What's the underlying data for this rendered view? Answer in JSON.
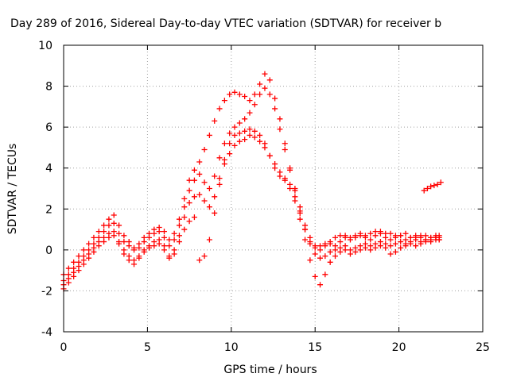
{
  "chart_data": {
    "type": "scatter",
    "title": "Day 289 of 2016, Sidereal Day-to-day VTEC variation (SDTVAR) for receiver b",
    "xlabel": "GPS time / hours",
    "ylabel": "SDTVAR / TECUs",
    "xlim": [
      0,
      25
    ],
    "ylim": [
      -4,
      10
    ],
    "xticks": [
      "0",
      "5",
      "10",
      "15",
      "20",
      "25"
    ],
    "yticks": [
      "-4",
      "-2",
      "0",
      "2",
      "4",
      "6",
      "8",
      "10"
    ],
    "grid": true,
    "marker": "+",
    "color": "#ff0000",
    "series": [
      {
        "x": [
          0.0,
          0.3,
          0.6,
          0.9,
          1.2,
          1.5,
          1.8,
          2.1,
          2.4,
          2.7,
          3.0,
          3.3,
          3.6,
          3.9,
          4.2,
          4.5,
          4.8,
          5.1,
          5.4,
          5.7,
          6.0,
          6.3,
          6.6,
          6.9,
          7.2,
          7.5,
          7.8,
          8.1,
          8.4,
          8.7,
          9.0,
          9.3,
          9.6,
          9.9,
          10.2,
          10.5,
          10.8,
          11.1,
          11.4,
          11.7,
          12.0,
          12.3,
          12.6,
          12.9,
          13.2,
          13.5,
          13.8,
          14.1,
          14.4,
          14.7,
          15.0,
          15.3,
          15.6,
          15.9,
          16.2,
          16.5,
          16.8,
          17.1,
          17.4,
          17.7,
          18.0,
          18.3,
          18.6,
          18.9,
          19.2,
          19.5,
          19.8,
          20.1,
          20.4,
          20.7,
          21.0,
          21.3,
          21.6,
          21.9,
          22.2,
          22.4
        ],
        "y": [
          -1.2,
          -0.9,
          -0.6,
          -0.3,
          0.0,
          0.3,
          0.6,
          0.9,
          1.2,
          1.5,
          1.7,
          1.2,
          0.7,
          0.4,
          0.1,
          0.3,
          0.6,
          0.8,
          1.0,
          1.1,
          0.9,
          0.5,
          0.8,
          1.5,
          2.5,
          3.4,
          3.9,
          4.3,
          4.9,
          5.6,
          6.3,
          6.9,
          7.3,
          7.6,
          7.7,
          7.6,
          7.5,
          7.3,
          7.6,
          8.1,
          8.6,
          8.3,
          7.4,
          6.4,
          5.2,
          4.0,
          2.9,
          1.9,
          1.0,
          0.3,
          0.1,
          0.2,
          0.3,
          0.4,
          0.6,
          0.7,
          0.7,
          0.6,
          0.7,
          0.8,
          0.7,
          0.8,
          0.9,
          0.9,
          0.8,
          0.8,
          0.7,
          0.7,
          0.8,
          0.6,
          0.6,
          0.7,
          0.7,
          0.6,
          0.7,
          0.7
        ]
      },
      {
        "x": [
          0.0,
          0.3,
          0.6,
          0.9,
          1.2,
          1.5,
          1.8,
          2.1,
          2.4,
          2.7,
          3.0,
          3.3,
          3.6,
          3.9,
          4.2,
          4.5,
          4.8,
          5.1,
          5.4,
          5.7,
          6.0,
          6.3,
          6.6,
          6.9,
          7.2,
          7.5,
          7.8,
          8.1,
          8.4,
          8.7,
          9.0,
          9.3,
          9.6,
          9.9,
          10.2,
          10.5,
          10.8,
          11.1,
          11.4,
          11.7,
          12.0,
          12.3,
          12.6,
          12.9,
          13.2,
          13.5,
          13.8,
          14.1,
          14.4,
          14.7,
          15.0,
          15.3,
          15.6,
          15.9,
          16.2,
          16.5,
          16.8,
          17.1,
          17.4,
          17.7,
          18.0,
          18.3,
          18.6,
          18.9,
          19.2,
          19.5,
          19.8,
          20.1,
          20.4,
          20.7,
          21.0,
          21.3,
          21.6,
          21.9,
          22.2,
          22.4
        ],
        "y": [
          -1.5,
          -1.2,
          -0.9,
          -0.6,
          -0.3,
          0.0,
          0.3,
          0.6,
          0.9,
          1.2,
          1.3,
          0.8,
          0.4,
          0.2,
          0.0,
          0.1,
          0.4,
          0.6,
          0.8,
          0.9,
          0.6,
          0.2,
          0.5,
          1.2,
          2.1,
          2.9,
          3.4,
          3.7,
          3.3,
          3.0,
          3.6,
          4.5,
          5.2,
          5.7,
          6.0,
          6.2,
          6.4,
          6.7,
          7.1,
          7.6,
          7.9,
          7.6,
          6.9,
          5.9,
          4.9,
          3.9,
          3.0,
          2.1,
          1.2,
          0.6,
          0.2,
          0.0,
          0.2,
          0.3,
          0.2,
          0.4,
          0.6,
          0.5,
          0.6,
          0.7,
          0.6,
          0.5,
          0.7,
          0.8,
          0.6,
          0.5,
          0.6,
          0.7,
          0.5,
          0.6,
          0.7,
          0.6,
          0.5,
          0.6,
          0.6,
          0.5
        ]
      },
      {
        "x": [
          0.0,
          0.3,
          0.6,
          0.9,
          1.2,
          1.5,
          1.8,
          2.1,
          2.4,
          2.7,
          3.0,
          3.3,
          3.6,
          3.9,
          4.2,
          4.5,
          4.8,
          5.1,
          5.4,
          5.7,
          6.0,
          6.3,
          6.6,
          6.9,
          7.2,
          7.5,
          7.8,
          8.1,
          8.4,
          8.7,
          9.0,
          9.3,
          9.6,
          9.9,
          10.2,
          10.5,
          10.8,
          11.1,
          11.4,
          11.7,
          12.0,
          12.3,
          12.6,
          12.9,
          13.2,
          13.5,
          13.8,
          14.1,
          14.4,
          14.7,
          15.0,
          15.3,
          15.6,
          15.9,
          16.2,
          16.5,
          16.8,
          17.1,
          17.4,
          17.7,
          18.0,
          18.3,
          18.6,
          18.9,
          19.2,
          19.5,
          19.8,
          20.1,
          20.4,
          20.7,
          21.0,
          21.3,
          21.6,
          21.9,
          22.2,
          22.4
        ],
        "y": [
          -1.7,
          -1.4,
          -1.1,
          -0.8,
          -0.5,
          -0.2,
          0.1,
          0.4,
          0.6,
          0.8,
          0.9,
          0.4,
          0.0,
          -0.3,
          -0.5,
          -0.3,
          0.0,
          0.2,
          0.4,
          0.5,
          0.2,
          -0.3,
          0.0,
          0.7,
          1.6,
          2.3,
          2.6,
          2.7,
          2.4,
          2.1,
          2.6,
          3.5,
          4.2,
          4.7,
          5.1,
          5.3,
          5.4,
          5.6,
          5.5,
          5.3,
          5.0,
          4.6,
          4.2,
          3.8,
          3.5,
          3.2,
          2.6,
          1.8,
          1.0,
          0.4,
          -0.2,
          -0.4,
          -0.3,
          -0.1,
          0.0,
          0.1,
          0.2,
          0.0,
          0.1,
          0.2,
          0.3,
          0.2,
          0.3,
          0.4,
          0.3,
          0.2,
          0.3,
          0.4,
          0.3,
          0.4,
          0.5,
          0.4,
          0.5,
          0.5,
          0.6,
          0.5
        ]
      },
      {
        "x": [
          0.0,
          0.3,
          0.6,
          0.9,
          1.2,
          1.5,
          1.8,
          2.1,
          2.4,
          2.7,
          3.0,
          3.3,
          3.6,
          3.9,
          4.2,
          4.5,
          4.8,
          5.1,
          5.4,
          5.7,
          6.0,
          6.3,
          6.6,
          6.9,
          7.2,
          7.5,
          7.8,
          8.1,
          8.4,
          8.7,
          9.0,
          9.3,
          9.6,
          9.9,
          10.2,
          10.5,
          10.8,
          11.1,
          11.4,
          11.7,
          12.0,
          12.3,
          12.6,
          12.9,
          13.2,
          13.5,
          13.8,
          14.1,
          14.4,
          14.7,
          15.0,
          15.3,
          15.6,
          15.9,
          16.2,
          16.5,
          16.8,
          17.1,
          17.4,
          17.7,
          18.0,
          18.3,
          18.6,
          18.9,
          19.2,
          19.5,
          19.8,
          20.1,
          20.4,
          20.7,
          21.0,
          21.3,
          21.6,
          21.9,
          22.2,
          22.4
        ],
        "y": [
          -1.9,
          -1.6,
          -1.3,
          -1.0,
          -0.7,
          -0.4,
          -0.1,
          0.2,
          0.4,
          0.6,
          0.7,
          0.3,
          -0.2,
          -0.5,
          -0.7,
          -0.4,
          -0.1,
          0.1,
          0.2,
          0.3,
          0.0,
          -0.4,
          -0.2,
          0.4,
          1.0,
          1.4,
          1.6,
          -0.5,
          -0.3,
          0.5,
          1.8,
          3.2,
          4.4,
          5.2,
          5.6,
          5.7,
          5.8,
          5.9,
          5.8,
          5.6,
          5.2,
          4.6,
          4.0,
          3.6,
          3.4,
          3.0,
          2.4,
          1.5,
          0.5,
          -0.5,
          -1.3,
          -1.7,
          -1.2,
          -0.6,
          -0.3,
          -0.1,
          0.0,
          -0.2,
          -0.1,
          0.0,
          0.1,
          0.0,
          0.1,
          0.2,
          0.1,
          -0.2,
          -0.1,
          0.1,
          0.2,
          0.3,
          0.2,
          0.3,
          0.4,
          0.4,
          0.5,
          0.6
        ]
      },
      {
        "x": [
          21.5,
          21.7,
          21.9,
          22.1,
          22.3,
          22.5
        ],
        "y": [
          2.9,
          3.0,
          3.1,
          3.15,
          3.2,
          3.3
        ]
      }
    ]
  }
}
